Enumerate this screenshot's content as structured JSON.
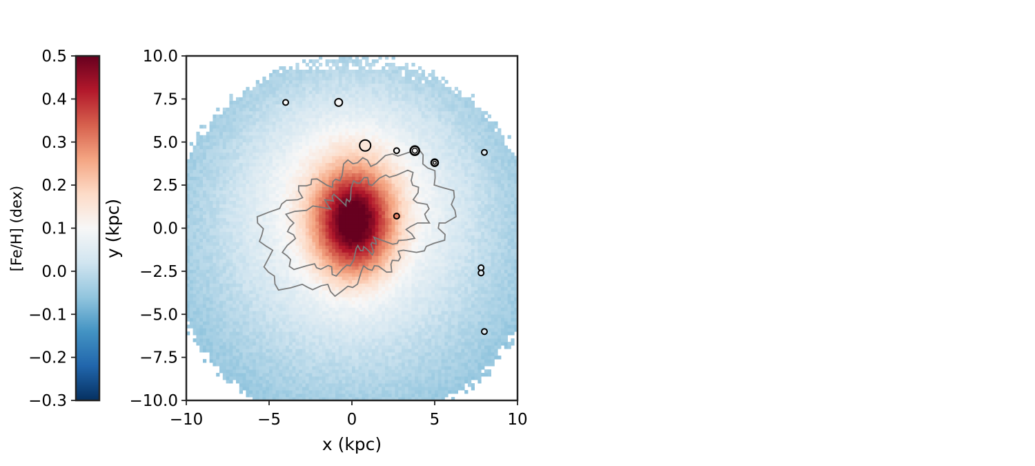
{
  "chart_data": {
    "type": "heatmap",
    "title": "",
    "xlabel": "x (kpc)",
    "ylabel": "y (kpc)",
    "xlim": [
      -10,
      10
    ],
    "ylim": [
      -10,
      10
    ],
    "xticks": [
      -10,
      -5,
      0,
      5,
      10
    ],
    "xtick_labels": [
      "−10",
      "−5",
      "0",
      "5",
      "10"
    ],
    "yticks": [
      -10,
      -7.5,
      -5,
      -2.5,
      0,
      2.5,
      5,
      7.5,
      10
    ],
    "ytick_labels": [
      "−10.0",
      "−7.5",
      "−5.0",
      "−2.5",
      "0.0",
      "2.5",
      "5.0",
      "7.5",
      "10.0"
    ],
    "grid": false,
    "colorbar": {
      "label": "[Fe/H] (dex)",
      "colormap": "RdBu_r",
      "range": [
        -0.3,
        0.5
      ],
      "ticks": [
        -0.3,
        -0.2,
        -0.1,
        0.0,
        0.1,
        0.2,
        0.3,
        0.4,
        0.5
      ],
      "tick_labels": [
        "−0.3",
        "−0.2",
        "−0.1",
        "0.0",
        "0.1",
        "0.2",
        "0.3",
        "0.4",
        "0.5"
      ],
      "placement": "left"
    },
    "contour_color": "#7a7a7a",
    "contour_rings": [
      {
        "level": "outer",
        "offset": 4.05
      },
      {
        "level": "inner",
        "offset": 2.7
      }
    ],
    "star_clusters": [
      {
        "x": -4.0,
        "y": 7.3,
        "size": "small",
        "feh": 0.1
      },
      {
        "x": -0.8,
        "y": 7.3,
        "size": "medium",
        "feh": 0.1
      },
      {
        "x": 0.8,
        "y": 4.8,
        "size": "large",
        "feh": 0.15
      },
      {
        "x": 2.7,
        "y": 4.5,
        "size": "small",
        "feh": 0.1
      },
      {
        "x": 3.8,
        "y": 4.5,
        "size": "large-double",
        "feh": 0.1
      },
      {
        "x": 5.0,
        "y": 3.8,
        "size": "medium-double",
        "feh": 0.1
      },
      {
        "x": 8.0,
        "y": 4.4,
        "size": "small",
        "feh": 0.05
      },
      {
        "x": 2.7,
        "y": 0.7,
        "size": "small",
        "feh": 0.3
      },
      {
        "x": 7.8,
        "y": -2.3,
        "size": "small",
        "feh": 0.05
      },
      {
        "x": 7.8,
        "y": -2.6,
        "size": "small",
        "feh": 0.05
      },
      {
        "x": 8.0,
        "y": -6.0,
        "size": "small",
        "feh": 0.05
      }
    ]
  }
}
